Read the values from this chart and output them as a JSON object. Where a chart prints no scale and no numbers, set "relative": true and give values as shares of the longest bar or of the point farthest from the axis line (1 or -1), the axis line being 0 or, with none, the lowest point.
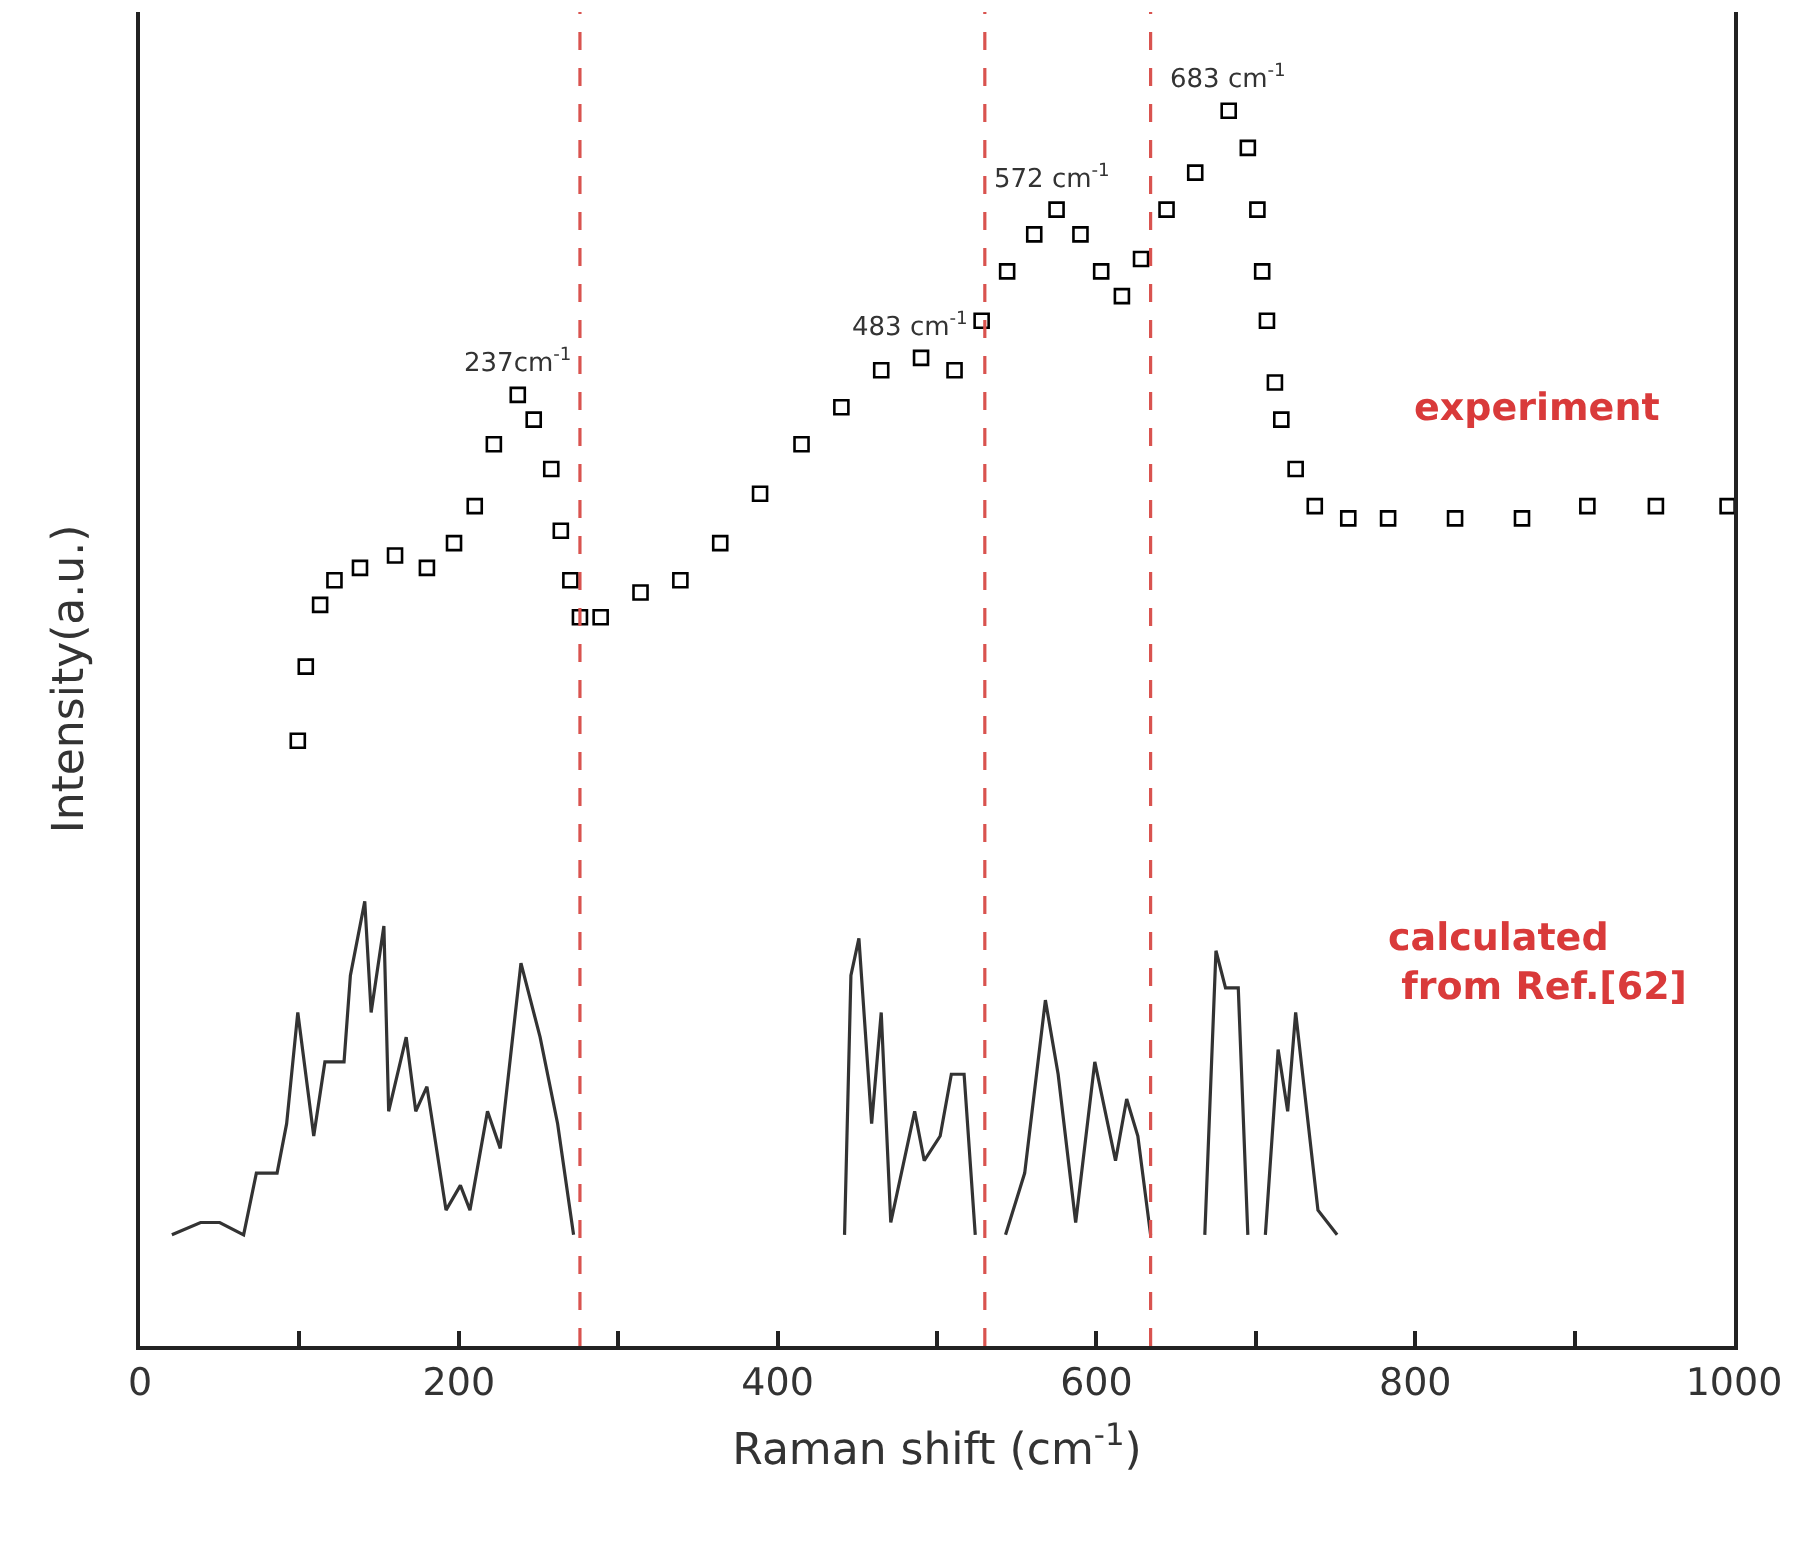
{
  "chart_data": {
    "type": "scatter",
    "relative": true,
    "xlabel": "Raman shift (cm$^{-1}$)",
    "ylabel": "Intensity(a.u.)",
    "xlim": [
      0,
      1000
    ],
    "xticks": [
      0,
      {
        "value": 100,
        "label": null
      },
      200,
      {
        "value": 300,
        "label": null
      },
      400,
      {
        "value": 500,
        "label": null
      },
      600,
      {
        "value": 700,
        "label": null
      },
      800,
      {
        "value": 900,
        "label": null
      },
      1000
    ],
    "legend": false,
    "series": [
      {
        "name": "experiment",
        "marker": "square",
        "color": "#000000",
        "x": [
          99,
          104,
          113,
          122,
          138,
          160,
          180,
          197,
          210,
          222,
          237,
          247,
          258,
          264,
          270,
          276,
          289,
          314,
          339,
          364,
          389,
          415,
          440,
          465,
          490,
          511,
          528,
          544,
          561,
          575,
          590,
          603,
          616,
          628,
          644,
          662,
          683,
          695,
          701,
          704,
          707,
          712,
          716,
          725,
          737,
          758,
          783,
          825,
          867,
          908,
          951,
          996
        ],
        "values": [
          0.49,
          0.55,
          0.6,
          0.62,
          0.63,
          0.64,
          0.63,
          0.65,
          0.68,
          0.73,
          0.77,
          0.75,
          0.71,
          0.66,
          0.62,
          0.59,
          0.59,
          0.61,
          0.62,
          0.65,
          0.69,
          0.73,
          0.76,
          0.79,
          0.8,
          0.79,
          0.83,
          0.87,
          0.9,
          0.92,
          0.9,
          0.87,
          0.85,
          0.88,
          0.92,
          0.95,
          1.0,
          0.97,
          0.92,
          0.87,
          0.83,
          0.78,
          0.75,
          0.71,
          0.68,
          0.67,
          0.67,
          0.67,
          0.67,
          0.68,
          0.68,
          0.68
        ]
      },
      {
        "name": "calculated\n from Ref.[62]",
        "type": "line",
        "marker": "none",
        "color": "#333333",
        "x": [
          20,
          38,
          50,
          65,
          73,
          86,
          92,
          99,
          109,
          116,
          128,
          132,
          141,
          145,
          153,
          156,
          167,
          173,
          180,
          192,
          201,
          207,
          218,
          226,
          239,
          251,
          262,
          272,
          350,
          442,
          446,
          451,
          459,
          465,
          471,
          486,
          492,
          502,
          509,
          517,
          524,
          533,
          543,
          555,
          568,
          576,
          587,
          599,
          612,
          619,
          626,
          634,
          650,
          668,
          675,
          681,
          689,
          695,
          700,
          706,
          714,
          720,
          725,
          739,
          751
        ],
        "values": [
          0.09,
          0.1,
          0.1,
          0.09,
          0.14,
          0.14,
          0.18,
          0.27,
          0.17,
          0.23,
          0.23,
          0.3,
          0.36,
          0.27,
          0.34,
          0.19,
          0.25,
          0.19,
          0.21,
          0.11,
          0.13,
          0.11,
          0.19,
          0.16,
          0.31,
          0.25,
          0.18,
          0.09,
          null,
          0.09,
          0.3,
          0.33,
          0.18,
          0.27,
          0.1,
          0.19,
          0.15,
          0.17,
          0.22,
          0.22,
          0.09,
          null,
          0.09,
          0.14,
          0.28,
          0.22,
          0.1,
          0.23,
          0.15,
          0.2,
          0.17,
          0.09,
          null,
          0.09,
          0.32,
          0.29,
          0.29,
          0.09,
          null,
          0.09,
          0.24,
          0.19,
          0.27,
          0.11,
          0.09
        ]
      }
    ],
    "ref_lines": [
      {
        "axis": "x",
        "value": 276,
        "color": "#d9534f",
        "line_style": "dashed"
      },
      {
        "axis": "x",
        "value": 530,
        "color": "#d9534f",
        "line_style": "dashed"
      },
      {
        "axis": "x",
        "value": 634,
        "color": "#d9534f",
        "line_style": "dashed"
      }
    ],
    "annotations": [
      {
        "text": "237cm$^{-1}$",
        "x": 237,
        "y": 0.77
      },
      {
        "text": "483 cm$^{-1}$",
        "x": 483,
        "y": 0.8
      },
      {
        "text": "572 cm$^{-1}$",
        "x": 572,
        "y": 0.92
      },
      {
        "text": "683 cm$^{-1}$",
        "x": 683,
        "y": 1.0
      }
    ]
  }
}
